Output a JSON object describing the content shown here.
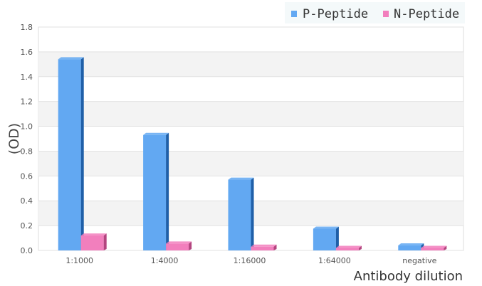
{
  "chart_data": {
    "type": "bar",
    "xlabel": "Antibody dilution",
    "ylabel": "(OD)",
    "categories": [
      "1:1000",
      "1:4000",
      "1:16000",
      "1:64000",
      "negative"
    ],
    "series": [
      {
        "name": "P-Peptide",
        "values": [
          1.54,
          0.93,
          0.57,
          0.175,
          0.04
        ],
        "color": "#62a8f2",
        "side_color": "#1f5fa8"
      },
      {
        "name": "N-Peptide",
        "values": [
          0.12,
          0.055,
          0.03,
          0.02,
          0.02
        ],
        "color": "#f27fbd",
        "side_color": "#b3457f"
      }
    ],
    "ylim": [
      0,
      1.8
    ],
    "yticks": [
      "0.0",
      "0.2",
      "0.4",
      "0.6",
      "0.8",
      "1.0",
      "1.2",
      "1.4",
      "1.6",
      "1.8"
    ],
    "grid": true,
    "legend_position": "top-right",
    "style": "3d-bars"
  }
}
